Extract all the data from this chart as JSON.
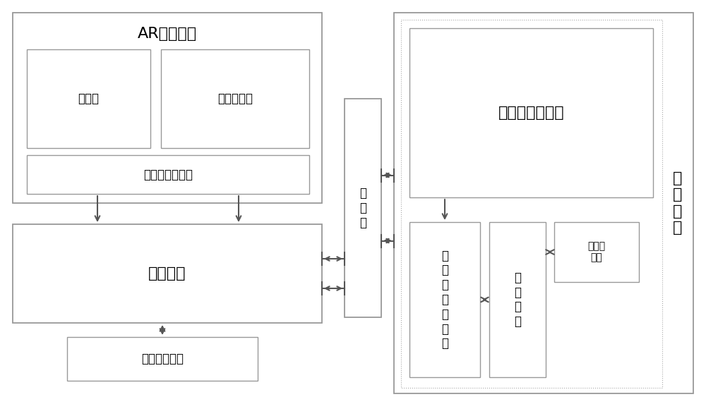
{
  "bg_color": "#ffffff",
  "text_color": "#000000",
  "box_edge_color": "#999999",
  "fig_width": 10.0,
  "fig_height": 5.73,
  "labels": {
    "ar_glasses": "AR智能眼镜",
    "microphone": "麦克风",
    "camera": "布控摄像头",
    "processor": "智能眼镜处理器",
    "network": "通讯网络",
    "mobile_terminal": "移动通讯终端",
    "firewall": "防\n火\n墙",
    "cloud_platform": "云\n端\n平\n台",
    "video_server": "移动视频服务器",
    "backend": "后\n台\n管\n理\n服\n务\n器",
    "interface": "接\n口\n服\n务",
    "repair_db": "维修数\n据库"
  },
  "font_size_large": 14,
  "font_size_medium": 12,
  "font_size_small": 10,
  "font_size_xlarge": 16
}
